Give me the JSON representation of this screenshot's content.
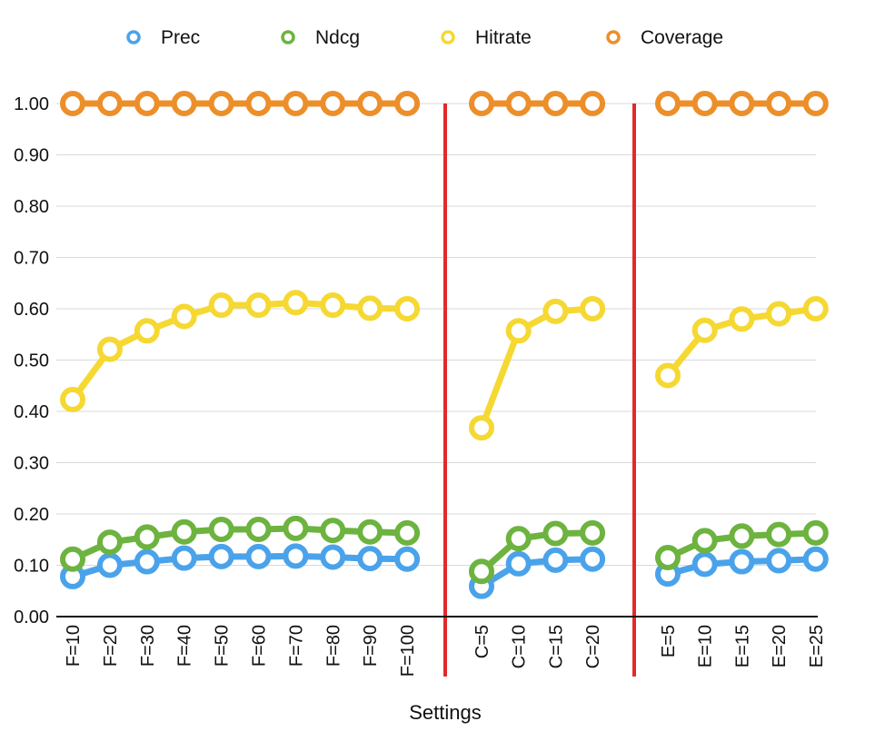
{
  "chart_data": {
    "type": "line",
    "title": "",
    "xlabel": "Settings",
    "ylabel": "",
    "ylim": [
      0,
      1.0
    ],
    "yticks": [
      "0.00",
      "0.10",
      "0.20",
      "0.30",
      "0.40",
      "0.50",
      "0.60",
      "0.70",
      "0.80",
      "0.90",
      "1.00"
    ],
    "grid": true,
    "legend_position": "top",
    "groups": [
      {
        "categories": [
          "F=10",
          "F=20",
          "F=30",
          "F=40",
          "F=50",
          "F=60",
          "F=70",
          "F=80",
          "F=90",
          "F=100"
        ],
        "series": [
          {
            "name": "Prec",
            "values": [
              0.078,
              0.1,
              0.107,
              0.114,
              0.117,
              0.117,
              0.118,
              0.116,
              0.113,
              0.112
            ]
          },
          {
            "name": "Ndcg",
            "values": [
              0.112,
              0.145,
              0.155,
              0.165,
              0.17,
              0.17,
              0.172,
              0.168,
              0.165,
              0.163
            ]
          },
          {
            "name": "Hitrate",
            "values": [
              0.423,
              0.521,
              0.557,
              0.585,
              0.607,
              0.607,
              0.612,
              0.607,
              0.601,
              0.6
            ]
          },
          {
            "name": "Coverage",
            "values": [
              1.0,
              1.0,
              1.0,
              1.0,
              1.0,
              1.0,
              1.0,
              1.0,
              1.0,
              1.0
            ]
          }
        ]
      },
      {
        "categories": [
          "C=5",
          "C=10",
          "C=15",
          "C=20"
        ],
        "series": [
          {
            "name": "Prec",
            "values": [
              0.059,
              0.103,
              0.11,
              0.112
            ]
          },
          {
            "name": "Ndcg",
            "values": [
              0.088,
              0.152,
              0.162,
              0.163
            ]
          },
          {
            "name": "Hitrate",
            "values": [
              0.368,
              0.557,
              0.595,
              0.6
            ]
          },
          {
            "name": "Coverage",
            "values": [
              1.0,
              1.0,
              1.0,
              1.0
            ]
          }
        ]
      },
      {
        "categories": [
          "E=5",
          "E=10",
          "E=15",
          "E=20",
          "E=25"
        ],
        "series": [
          {
            "name": "Prec",
            "values": [
              0.083,
              0.102,
              0.107,
              0.109,
              0.112
            ]
          },
          {
            "name": "Ndcg",
            "values": [
              0.115,
              0.148,
              0.157,
              0.16,
              0.163
            ]
          },
          {
            "name": "Hitrate",
            "values": [
              0.47,
              0.558,
              0.58,
              0.59,
              0.6
            ]
          },
          {
            "name": "Coverage",
            "values": [
              1.0,
              1.0,
              1.0,
              1.0,
              1.0
            ]
          }
        ]
      }
    ],
    "legend": [
      {
        "name": "Prec",
        "color": "#4aa3ea"
      },
      {
        "name": "Ndcg",
        "color": "#6db33f"
      },
      {
        "name": "Hitrate",
        "color": "#f5d832"
      },
      {
        "name": "Coverage",
        "color": "#ec8f2a"
      }
    ],
    "separator_color": "#e02b2b"
  }
}
